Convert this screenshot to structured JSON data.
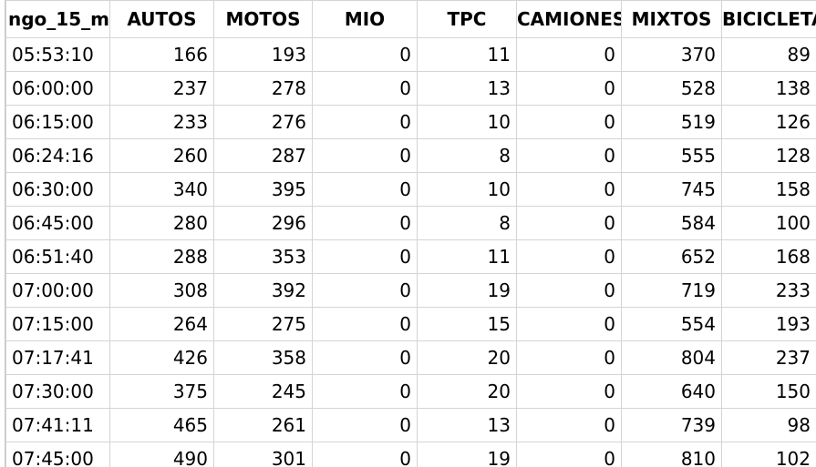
{
  "headers": [
    "ngo_15_m",
    "AUTOS",
    "MOTOS",
    "MIO",
    "TPC",
    "CAMIONES",
    "MIXTOS",
    "BICICLETAS"
  ],
  "rows": [
    [
      "05:53:10",
      "166",
      "193",
      "0",
      "11",
      "0",
      "370",
      "89"
    ],
    [
      "06:00:00",
      "237",
      "278",
      "0",
      "13",
      "0",
      "528",
      "138"
    ],
    [
      "06:15:00",
      "233",
      "276",
      "0",
      "10",
      "0",
      "519",
      "126"
    ],
    [
      "06:24:16",
      "260",
      "287",
      "0",
      "8",
      "0",
      "555",
      "128"
    ],
    [
      "06:30:00",
      "340",
      "395",
      "0",
      "10",
      "0",
      "745",
      "158"
    ],
    [
      "06:45:00",
      "280",
      "296",
      "0",
      "8",
      "0",
      "584",
      "100"
    ],
    [
      "06:51:40",
      "288",
      "353",
      "0",
      "11",
      "0",
      "652",
      "168"
    ],
    [
      "07:00:00",
      "308",
      "392",
      "0",
      "19",
      "0",
      "719",
      "233"
    ],
    [
      "07:15:00",
      "264",
      "275",
      "0",
      "15",
      "0",
      "554",
      "193"
    ],
    [
      "07:17:41",
      "426",
      "358",
      "0",
      "20",
      "0",
      "804",
      "237"
    ],
    [
      "07:30:00",
      "375",
      "245",
      "0",
      "20",
      "0",
      "640",
      "150"
    ],
    [
      "07:41:11",
      "465",
      "261",
      "0",
      "13",
      "0",
      "739",
      "98"
    ],
    [
      "07:45:00",
      "490",
      "301",
      "0",
      "19",
      "0",
      "810",
      "102"
    ]
  ]
}
